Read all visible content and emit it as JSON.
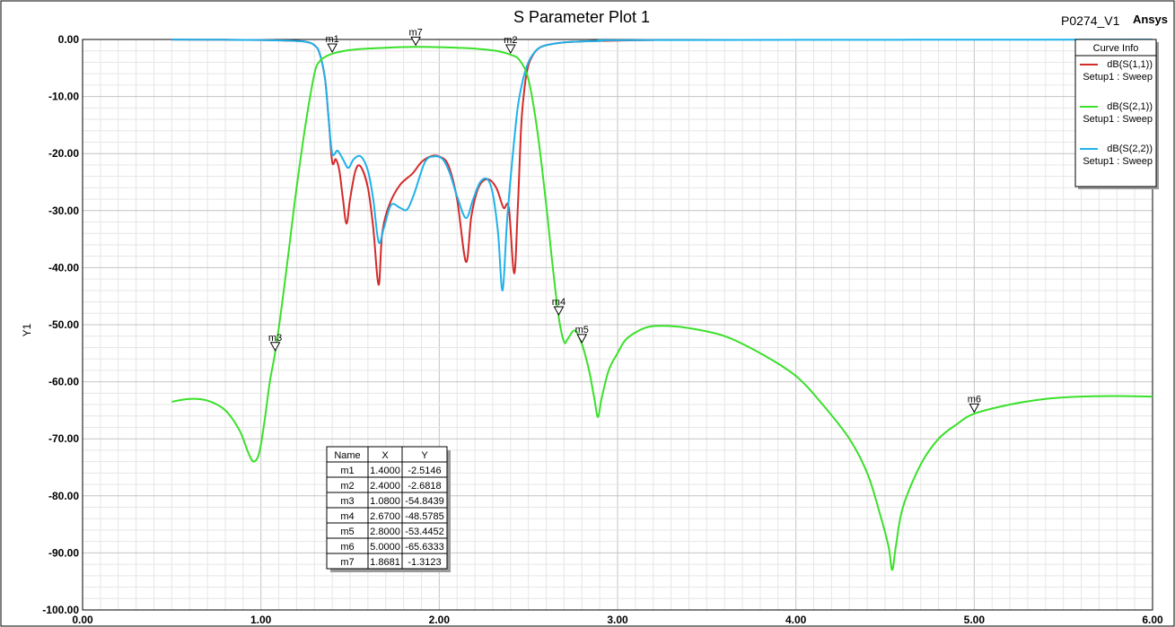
{
  "chart_data": {
    "type": "line",
    "title": "S Parameter Plot 1",
    "project": "P0274_V1",
    "brand": "Ansys",
    "xlabel": "",
    "ylabel": "Y1",
    "xlim": [
      0,
      6
    ],
    "ylim": [
      -100,
      0
    ],
    "x_ticks": [
      "0.00",
      "1.00",
      "2.00",
      "3.00",
      "4.00",
      "5.00",
      "6.00"
    ],
    "y_ticks": [
      "0.00",
      "-10.00",
      "-20.00",
      "-30.00",
      "-40.00",
      "-50.00",
      "-60.00",
      "-70.00",
      "-80.00",
      "-90.00",
      "-100.00"
    ],
    "grid": true,
    "legend": {
      "title": "Curve Info",
      "placement": "top-right",
      "entries": [
        {
          "name": "dB(S(1,1))",
          "sub": "Setup1 : Sweep",
          "color": "#d42a2a"
        },
        {
          "name": "dB(S(2,1))",
          "sub": "Setup1 : Sweep",
          "color": "#3ae02a"
        },
        {
          "name": "dB(S(2,2))",
          "sub": "Setup1 : Sweep",
          "color": "#1fb1ea"
        }
      ]
    },
    "series": [
      {
        "name": "dB(S(1,1))",
        "color": "#d42a2a",
        "points": [
          [
            0.5,
            -0.02
          ],
          [
            0.8,
            -0.05
          ],
          [
            1.0,
            -0.1
          ],
          [
            1.15,
            -0.2
          ],
          [
            1.25,
            -0.4
          ],
          [
            1.3,
            -1.0
          ],
          [
            1.33,
            -2.5
          ],
          [
            1.36,
            -7
          ],
          [
            1.38,
            -14
          ],
          [
            1.4,
            -21.5
          ],
          [
            1.42,
            -21
          ],
          [
            1.44,
            -23
          ],
          [
            1.46,
            -28
          ],
          [
            1.48,
            -32.3
          ],
          [
            1.5,
            -28
          ],
          [
            1.53,
            -23
          ],
          [
            1.56,
            -22.3
          ],
          [
            1.6,
            -26
          ],
          [
            1.63,
            -33
          ],
          [
            1.66,
            -43
          ],
          [
            1.68,
            -34
          ],
          [
            1.72,
            -29
          ],
          [
            1.78,
            -25.5
          ],
          [
            1.85,
            -23.5
          ],
          [
            1.9,
            -21.5
          ],
          [
            1.95,
            -20.5
          ],
          [
            2.0,
            -20.5
          ],
          [
            2.05,
            -22
          ],
          [
            2.1,
            -28
          ],
          [
            2.15,
            -39
          ],
          [
            2.18,
            -31
          ],
          [
            2.22,
            -26
          ],
          [
            2.27,
            -24.5
          ],
          [
            2.32,
            -26
          ],
          [
            2.36,
            -29.5
          ],
          [
            2.39,
            -29.5
          ],
          [
            2.42,
            -41
          ],
          [
            2.44,
            -30
          ],
          [
            2.46,
            -15
          ],
          [
            2.48,
            -8
          ],
          [
            2.5,
            -4.5
          ],
          [
            2.53,
            -2.5
          ],
          [
            2.56,
            -1.5
          ],
          [
            2.6,
            -1
          ],
          [
            2.7,
            -0.5
          ],
          [
            2.9,
            -0.25
          ],
          [
            3.2,
            -0.1
          ]
        ]
      },
      {
        "name": "dB(S(2,1))",
        "color": "#3ae02a",
        "points": [
          [
            0.5,
            -63.5
          ],
          [
            0.6,
            -63
          ],
          [
            0.7,
            -63.3
          ],
          [
            0.8,
            -65
          ],
          [
            0.88,
            -68.5
          ],
          [
            0.93,
            -72.5
          ],
          [
            0.96,
            -74
          ],
          [
            0.99,
            -72.5
          ],
          [
            1.02,
            -67
          ],
          [
            1.05,
            -60
          ],
          [
            1.08,
            -54.8
          ],
          [
            1.12,
            -46
          ],
          [
            1.16,
            -36
          ],
          [
            1.2,
            -26
          ],
          [
            1.25,
            -15
          ],
          [
            1.3,
            -6
          ],
          [
            1.33,
            -3.8
          ],
          [
            1.37,
            -2.9
          ],
          [
            1.4,
            -2.5
          ],
          [
            1.45,
            -2.1
          ],
          [
            1.55,
            -1.7
          ],
          [
            1.7,
            -1.45
          ],
          [
            1.868,
            -1.31
          ],
          [
            2.0,
            -1.35
          ],
          [
            2.1,
            -1.45
          ],
          [
            2.2,
            -1.6
          ],
          [
            2.3,
            -1.9
          ],
          [
            2.35,
            -2.2
          ],
          [
            2.4,
            -2.68
          ],
          [
            2.45,
            -3.6
          ],
          [
            2.5,
            -7
          ],
          [
            2.55,
            -16
          ],
          [
            2.6,
            -29
          ],
          [
            2.63,
            -38
          ],
          [
            2.67,
            -48.6
          ],
          [
            2.7,
            -53
          ],
          [
            2.72,
            -52.5
          ],
          [
            2.76,
            -51
          ],
          [
            2.8,
            -53.4
          ],
          [
            2.84,
            -58
          ],
          [
            2.87,
            -63
          ],
          [
            2.89,
            -66.2
          ],
          [
            2.91,
            -63
          ],
          [
            2.95,
            -58
          ],
          [
            3.0,
            -55
          ],
          [
            3.05,
            -52.5
          ],
          [
            3.15,
            -50.6
          ],
          [
            3.25,
            -50.2
          ],
          [
            3.4,
            -50.6
          ],
          [
            3.6,
            -52
          ],
          [
            3.8,
            -55
          ],
          [
            4.0,
            -59
          ],
          [
            4.15,
            -64
          ],
          [
            4.3,
            -70
          ],
          [
            4.4,
            -76
          ],
          [
            4.47,
            -83
          ],
          [
            4.52,
            -89
          ],
          [
            4.54,
            -93
          ],
          [
            4.56,
            -89
          ],
          [
            4.6,
            -82
          ],
          [
            4.7,
            -74.5
          ],
          [
            4.8,
            -70
          ],
          [
            4.9,
            -67.5
          ],
          [
            5.0,
            -65.6
          ],
          [
            5.2,
            -64
          ],
          [
            5.4,
            -63
          ],
          [
            5.6,
            -62.6
          ],
          [
            5.8,
            -62.5
          ],
          [
            6.0,
            -62.6
          ]
        ]
      },
      {
        "name": "dB(S(2,2))",
        "color": "#1fb1ea",
        "points": [
          [
            0.5,
            -0.02
          ],
          [
            0.8,
            -0.05
          ],
          [
            1.0,
            -0.1
          ],
          [
            1.15,
            -0.2
          ],
          [
            1.25,
            -0.4
          ],
          [
            1.3,
            -1.0
          ],
          [
            1.33,
            -2.5
          ],
          [
            1.36,
            -7
          ],
          [
            1.38,
            -14
          ],
          [
            1.4,
            -20
          ],
          [
            1.43,
            -19.5
          ],
          [
            1.46,
            -21
          ],
          [
            1.49,
            -22.5
          ],
          [
            1.52,
            -21
          ],
          [
            1.56,
            -20.5
          ],
          [
            1.6,
            -23
          ],
          [
            1.63,
            -28
          ],
          [
            1.66,
            -35.5
          ],
          [
            1.69,
            -33
          ],
          [
            1.73,
            -29
          ],
          [
            1.78,
            -29.5
          ],
          [
            1.82,
            -29.8
          ],
          [
            1.86,
            -27
          ],
          [
            1.92,
            -21.5
          ],
          [
            1.97,
            -20.5
          ],
          [
            2.02,
            -21
          ],
          [
            2.06,
            -23.5
          ],
          [
            2.1,
            -27.5
          ],
          [
            2.15,
            -31.3
          ],
          [
            2.19,
            -28
          ],
          [
            2.23,
            -25
          ],
          [
            2.27,
            -24.5
          ],
          [
            2.3,
            -27
          ],
          [
            2.33,
            -34
          ],
          [
            2.355,
            -44
          ],
          [
            2.38,
            -32
          ],
          [
            2.41,
            -21
          ],
          [
            2.44,
            -12
          ],
          [
            2.47,
            -7
          ],
          [
            2.5,
            -4
          ],
          [
            2.53,
            -2.4
          ],
          [
            2.56,
            -1.5
          ],
          [
            2.6,
            -1
          ],
          [
            2.7,
            -0.5
          ],
          [
            2.9,
            -0.25
          ],
          [
            3.2,
            -0.1
          ],
          [
            6.0,
            -0.02
          ]
        ]
      }
    ],
    "markers": [
      {
        "name": "m1",
        "x": 1.4,
        "y": -2.5146,
        "x_text": "1.4000",
        "y_text": "-2.5146"
      },
      {
        "name": "m2",
        "x": 2.4,
        "y": -2.6818,
        "x_text": "2.4000",
        "y_text": "-2.6818"
      },
      {
        "name": "m3",
        "x": 1.08,
        "y": -54.8439,
        "x_text": "1.0800",
        "y_text": "-54.8439"
      },
      {
        "name": "m4",
        "x": 2.67,
        "y": -48.5785,
        "x_text": "2.6700",
        "y_text": "-48.5785"
      },
      {
        "name": "m5",
        "x": 2.8,
        "y": -53.4452,
        "x_text": "2.8000",
        "y_text": "-53.4452"
      },
      {
        "name": "m6",
        "x": 5.0,
        "y": -65.6333,
        "x_text": "5.0000",
        "y_text": "-65.6333"
      },
      {
        "name": "m7",
        "x": 1.8681,
        "y": -1.3123,
        "x_text": "1.8681",
        "y_text": "-1.3123"
      }
    ],
    "marker_table": {
      "headers": [
        "Name",
        "X",
        "Y"
      ]
    }
  }
}
